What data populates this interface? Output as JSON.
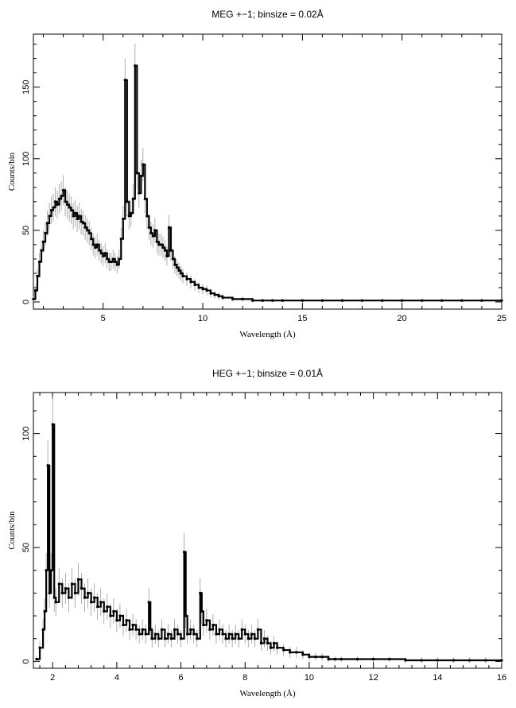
{
  "chart_data": [
    {
      "type": "line",
      "title": "MEG +−1; binsize = 0.02Å",
      "xlabel": "Wavelength (Å)",
      "ylabel": "Counts/bin",
      "xlim": [
        1.5,
        25
      ],
      "ylim": [
        -5,
        187
      ],
      "xticks": [
        5,
        10,
        15,
        20,
        25
      ],
      "yticks": [
        0,
        50,
        100,
        150
      ],
      "grid": false,
      "series": [
        {
          "x": [
            1.5,
            1.6,
            1.7,
            1.8,
            1.9,
            2.0,
            2.1,
            2.2,
            2.3,
            2.4,
            2.5,
            2.6,
            2.7,
            2.8,
            2.9,
            3.0,
            3.1,
            3.2,
            3.3,
            3.4,
            3.5,
            3.6,
            3.7,
            3.8,
            3.9,
            4.0,
            4.1,
            4.2,
            4.3,
            4.4,
            4.5,
            4.6,
            4.7,
            4.8,
            4.9,
            5.0,
            5.1,
            5.2,
            5.3,
            5.4,
            5.5,
            5.6,
            5.7,
            5.8,
            5.9,
            6.0,
            6.1,
            6.2,
            6.3,
            6.4,
            6.5,
            6.6,
            6.7,
            6.8,
            6.9,
            7.0,
            7.1,
            7.2,
            7.3,
            7.4,
            7.5,
            7.6,
            7.7,
            7.8,
            7.9,
            8.0,
            8.1,
            8.2,
            8.3,
            8.4,
            8.5,
            8.6,
            8.7,
            8.8,
            8.9,
            9.0,
            9.2,
            9.4,
            9.6,
            9.8,
            10.0,
            10.2,
            10.4,
            10.6,
            10.8,
            11.0,
            11.5,
            12.0,
            12.5,
            13.0,
            13.5,
            14.0,
            15.0,
            16.0,
            17.0,
            18.0,
            19.0,
            20.0,
            21.0,
            22.0,
            23.0,
            24.0,
            25.0
          ],
          "y": [
            2,
            8,
            18,
            28,
            36,
            42,
            48,
            55,
            60,
            64,
            66,
            70,
            68,
            72,
            74,
            78,
            70,
            68,
            66,
            64,
            60,
            62,
            58,
            60,
            56,
            55,
            52,
            50,
            48,
            44,
            40,
            38,
            40,
            36,
            34,
            32,
            34,
            30,
            28,
            28,
            30,
            28,
            26,
            30,
            44,
            58,
            155,
            70,
            60,
            62,
            72,
            165,
            90,
            76,
            88,
            96,
            72,
            60,
            52,
            48,
            46,
            50,
            42,
            40,
            40,
            38,
            36,
            32,
            52,
            36,
            30,
            26,
            24,
            22,
            20,
            18,
            16,
            14,
            12,
            10,
            9,
            8,
            6,
            5,
            4,
            3,
            2,
            2,
            1,
            1,
            1,
            1,
            1,
            1,
            1,
            1,
            1,
            1,
            1,
            1,
            1,
            1,
            1
          ]
        }
      ]
    },
    {
      "type": "line",
      "title": "HEG +−1; binsize = 0.01Å",
      "xlabel": "Wavelength (Å)",
      "ylabel": "Counts/bin",
      "xlim": [
        1.4,
        16
      ],
      "ylim": [
        -3,
        118
      ],
      "xticks": [
        2,
        4,
        6,
        8,
        10,
        12,
        14,
        16
      ],
      "yticks": [
        0,
        50,
        100
      ],
      "grid": false,
      "series": [
        {
          "x": [
            1.5,
            1.6,
            1.7,
            1.75,
            1.8,
            1.85,
            1.9,
            1.95,
            2.0,
            2.05,
            2.1,
            2.2,
            2.3,
            2.4,
            2.5,
            2.6,
            2.7,
            2.8,
            2.9,
            3.0,
            3.1,
            3.2,
            3.3,
            3.4,
            3.5,
            3.6,
            3.7,
            3.8,
            3.9,
            4.0,
            4.1,
            4.2,
            4.3,
            4.4,
            4.5,
            4.6,
            4.7,
            4.8,
            4.9,
            5.0,
            5.05,
            5.1,
            5.2,
            5.3,
            5.4,
            5.5,
            5.6,
            5.7,
            5.8,
            5.9,
            6.0,
            6.1,
            6.15,
            6.2,
            6.3,
            6.4,
            6.5,
            6.6,
            6.65,
            6.7,
            6.8,
            6.9,
            7.0,
            7.1,
            7.2,
            7.3,
            7.4,
            7.5,
            7.6,
            7.7,
            7.8,
            7.9,
            8.0,
            8.1,
            8.2,
            8.3,
            8.4,
            8.5,
            8.6,
            8.7,
            8.8,
            8.9,
            9.0,
            9.2,
            9.4,
            9.6,
            9.8,
            10.0,
            10.2,
            10.4,
            10.6,
            10.8,
            11.0,
            11.5,
            12.0,
            12.5,
            13.0,
            13.5,
            14.0,
            14.5,
            15.0,
            15.5,
            16.0
          ],
          "y": [
            1,
            6,
            14,
            22,
            40,
            86,
            30,
            40,
            104,
            28,
            26,
            34,
            30,
            32,
            28,
            34,
            30,
            36,
            32,
            28,
            30,
            26,
            28,
            24,
            26,
            22,
            24,
            20,
            22,
            18,
            20,
            16,
            18,
            14,
            16,
            14,
            12,
            14,
            12,
            26,
            14,
            10,
            12,
            10,
            14,
            10,
            12,
            10,
            14,
            12,
            10,
            48,
            20,
            12,
            14,
            12,
            10,
            30,
            22,
            16,
            18,
            14,
            16,
            12,
            14,
            12,
            10,
            12,
            10,
            12,
            10,
            14,
            12,
            10,
            12,
            10,
            14,
            8,
            10,
            8,
            6,
            8,
            6,
            5,
            4,
            4,
            3,
            2,
            2,
            2,
            1,
            1,
            1,
            1,
            1,
            1,
            0.5,
            0.5,
            0.5,
            0.5,
            0.5,
            0.5,
            0.5
          ]
        }
      ]
    }
  ]
}
